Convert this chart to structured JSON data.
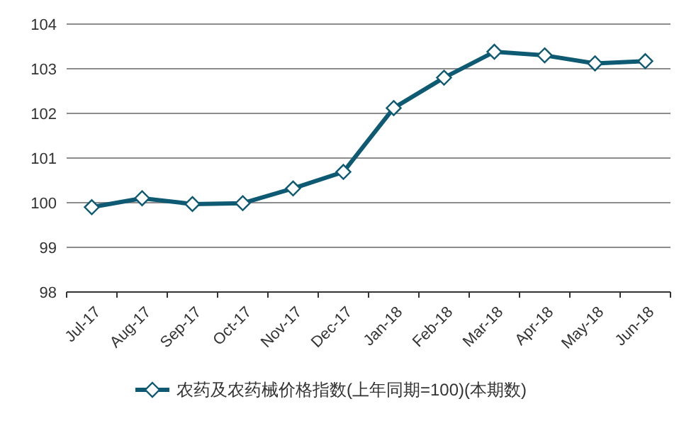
{
  "chart_data": {
    "type": "line",
    "categories": [
      "Jul-17",
      "Aug-17",
      "Sep-17",
      "Oct-17",
      "Nov-17",
      "Dec-17",
      "Jan-18",
      "Feb-18",
      "Mar-18",
      "Apr-18",
      "May-18",
      "Jun-18"
    ],
    "series": [
      {
        "name": "农药及农药械价格指数(上年同期=100)(本期数)",
        "color": "#0e5a73",
        "values": [
          99.9,
          100.1,
          99.97,
          99.99,
          100.32,
          100.69,
          102.12,
          102.8,
          103.38,
          103.3,
          103.12,
          103.17
        ]
      }
    ],
    "ylim": [
      98,
      104
    ],
    "yticks": [
      98,
      99,
      100,
      101,
      102,
      103,
      104
    ],
    "grid": "y",
    "legend": "bottom",
    "marker": "diamond",
    "line_style": "solid"
  }
}
